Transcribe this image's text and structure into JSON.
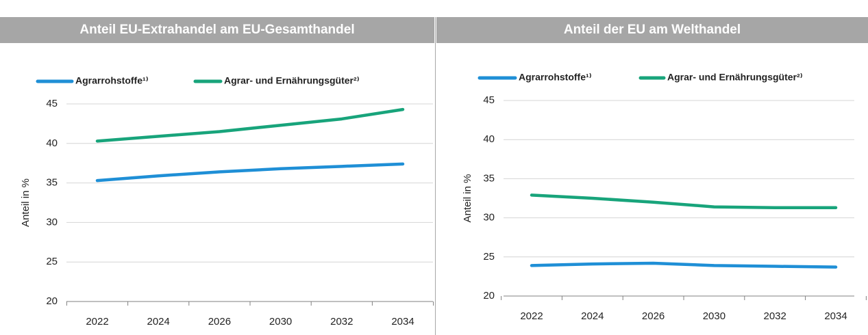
{
  "chart_data": [
    {
      "type": "line",
      "title": "Anteil EU-Extrahandel am EU-Gesamthandel",
      "ylabel": "Anteil in %",
      "categories": [
        "2022",
        "2024",
        "2026",
        "2030",
        "2032",
        "2034"
      ],
      "series": [
        {
          "name": "Agrarrohstoffe¹⁾",
          "color": "#1f8fd6",
          "values": [
            35.3,
            35.9,
            36.4,
            36.8,
            37.1,
            37.4
          ]
        },
        {
          "name": "Agrar- und Ernährungsgüter²⁾",
          "color": "#18a47b",
          "values": [
            40.3,
            40.9,
            41.5,
            42.3,
            43.1,
            44.3
          ]
        }
      ],
      "ylim": [
        20,
        45
      ],
      "yticks": [
        20,
        25,
        30,
        35,
        40,
        45
      ],
      "grid": true
    },
    {
      "type": "line",
      "title": "Anteil der EU am Welthandel",
      "ylabel": "Anteil in %",
      "categories": [
        "2022",
        "2024",
        "2026",
        "2030",
        "2032",
        "2034"
      ],
      "series": [
        {
          "name": "Agrarrohstoffe¹⁾",
          "color": "#1f8fd6",
          "values": [
            23.9,
            24.1,
            24.2,
            23.9,
            23.8,
            23.7
          ]
        },
        {
          "name": "Agrar- und Ernährungsgüter²⁾",
          "color": "#18a47b",
          "values": [
            32.9,
            32.5,
            32.0,
            31.4,
            31.3,
            31.3
          ]
        }
      ],
      "ylim": [
        20,
        45
      ],
      "yticks": [
        20,
        25,
        30,
        35,
        40,
        45
      ],
      "grid": true
    }
  ]
}
